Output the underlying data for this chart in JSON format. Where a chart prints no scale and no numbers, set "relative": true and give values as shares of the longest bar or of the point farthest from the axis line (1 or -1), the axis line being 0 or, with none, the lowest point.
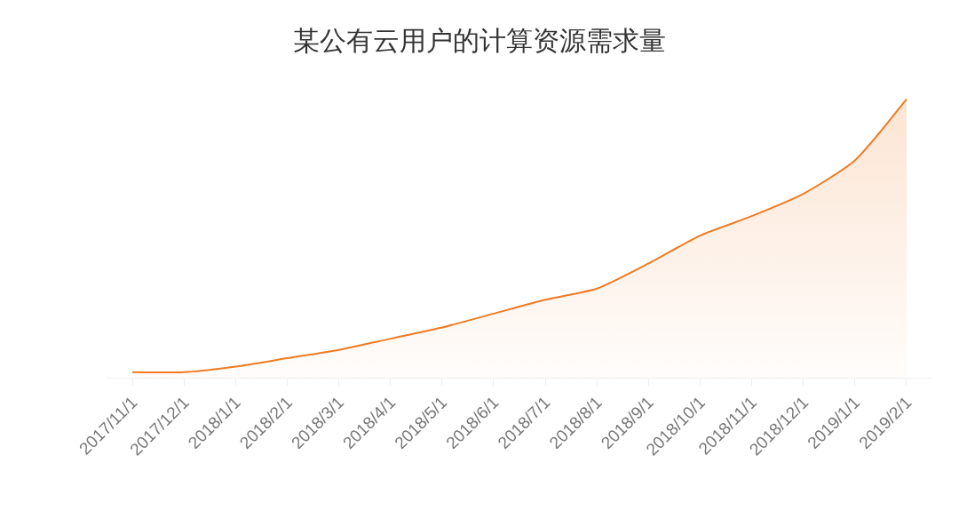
{
  "chart_data": {
    "type": "area",
    "title": "某公有云用户的计算资源需求量",
    "relative": true,
    "categories": [
      "2017/11/1",
      "2017/12/1",
      "2018/1/1",
      "2018/2/1",
      "2018/3/1",
      "2018/4/1",
      "2018/5/1",
      "2018/6/1",
      "2018/7/1",
      "2018/8/1",
      "2018/9/1",
      "2018/10/1",
      "2018/11/1",
      "2018/12/1",
      "2019/1/1",
      "2019/2/1"
    ],
    "series": [
      {
        "color": "#f07a22",
        "values": [
          0.02,
          0.02,
          0.04,
          0.07,
          0.1,
          0.14,
          0.18,
          0.23,
          0.28,
          0.32,
          0.41,
          0.51,
          0.58,
          0.66,
          0.78,
          1
        ]
      }
    ],
    "line_style": "solid"
  }
}
